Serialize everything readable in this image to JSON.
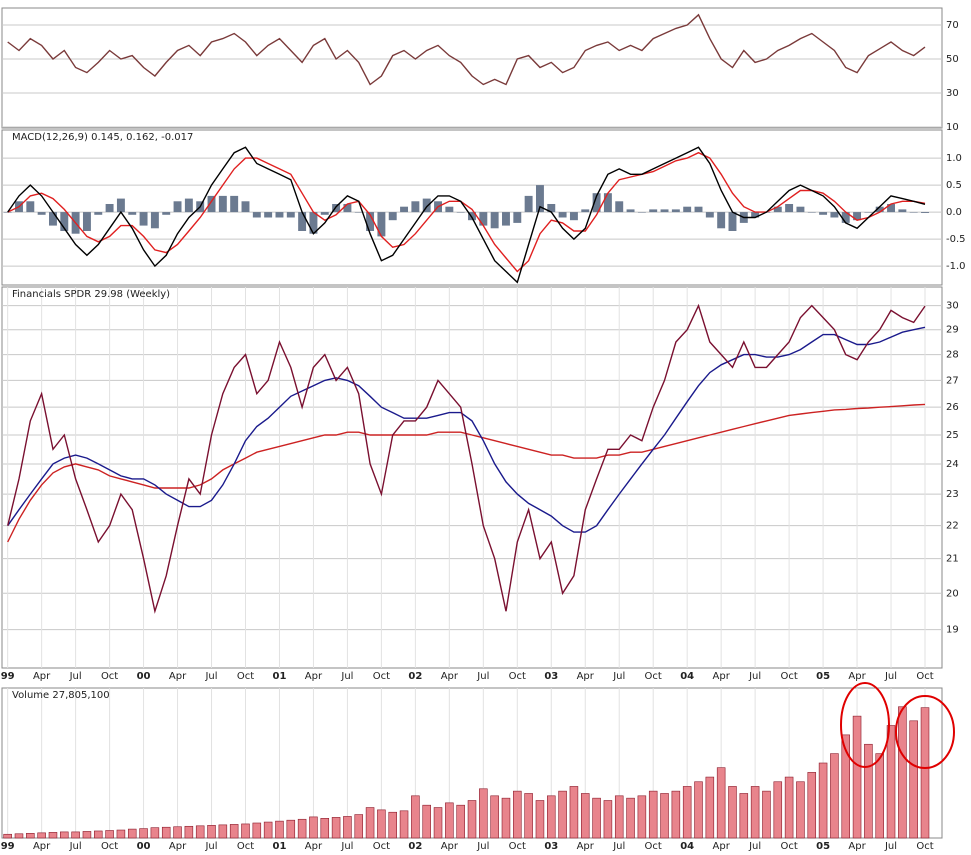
{
  "chart_data": [
    {
      "type": "line",
      "ylim": [
        9.4,
        80
      ],
      "yticks": [
        10,
        30,
        50,
        70
      ],
      "xlim": [
        -0.5,
        82.5
      ],
      "grid": true,
      "series": [
        {
          "color": "#7a3a3a",
          "values": [
            60,
            55,
            62,
            58,
            50,
            55,
            45,
            42,
            48,
            55,
            50,
            52,
            45,
            40,
            48,
            55,
            58,
            52,
            60,
            62,
            65,
            60,
            52,
            58,
            62,
            55,
            48,
            58,
            62,
            50,
            55,
            48,
            35,
            40,
            52,
            55,
            50,
            55,
            58,
            52,
            48,
            40,
            35,
            38,
            35,
            50,
            52,
            45,
            48,
            42,
            45,
            55,
            58,
            60,
            55,
            58,
            55,
            62,
            65,
            68,
            70,
            76,
            62,
            50,
            45,
            55,
            48,
            50,
            55,
            58,
            62,
            65,
            60,
            55,
            45,
            42,
            52,
            56,
            60,
            55,
            52,
            57
          ]
        }
      ]
    },
    {
      "type": "line",
      "title": "MACD(12,26,9) 0.145, 0.162, -0.017",
      "ylim": [
        -1.35,
        1.52
      ],
      "xlim": [
        -0.5,
        82.5
      ],
      "grid": true,
      "yticks": [
        {
          "value": -1,
          "label": "-1.0"
        },
        {
          "value": -0.5,
          "label": "-0.5"
        },
        {
          "value": 0,
          "label": "0.0"
        },
        {
          "value": 0.5,
          "label": "0.5"
        },
        {
          "value": 1,
          "label": "1.0"
        }
      ],
      "series": [
        {
          "type": "bar",
          "color": "#6b7a90",
          "values": [
            0.0,
            0.2,
            0.2,
            -0.05,
            -0.25,
            -0.35,
            -0.4,
            -0.35,
            -0.05,
            0.15,
            0.25,
            -0.05,
            -0.25,
            -0.3,
            -0.05,
            0.2,
            0.25,
            0.2,
            0.3,
            0.3,
            0.3,
            0.2,
            -0.1,
            -0.1,
            -0.1,
            -0.1,
            -0.35,
            -0.4,
            -0.05,
            0.15,
            0.15,
            0.0,
            -0.35,
            -0.45,
            -0.15,
            0.1,
            0.2,
            0.25,
            0.2,
            0.1,
            0.0,
            -0.15,
            -0.25,
            -0.3,
            -0.25,
            -0.2,
            0.3,
            0.5,
            0.15,
            -0.1,
            -0.15,
            0.05,
            0.35,
            0.35,
            0.2,
            0.05,
            0.0,
            0.05,
            0.05,
            0.05,
            0.1,
            0.1,
            -0.1,
            -0.3,
            -0.35,
            -0.2,
            -0.1,
            0.0,
            0.1,
            0.15,
            0.1,
            0.0,
            -0.05,
            -0.1,
            -0.2,
            -0.15,
            0.0,
            0.1,
            0.15,
            0.05,
            0.0,
            -0.017
          ]
        },
        {
          "color": "#e02020",
          "values": [
            0.0,
            0.1,
            0.3,
            0.35,
            0.25,
            0.05,
            -0.2,
            -0.45,
            -0.55,
            -0.45,
            -0.25,
            -0.25,
            -0.45,
            -0.7,
            -0.75,
            -0.6,
            -0.35,
            -0.1,
            0.2,
            0.5,
            0.8,
            1.0,
            1.0,
            0.9,
            0.8,
            0.7,
            0.35,
            0.0,
            -0.15,
            -0.05,
            0.15,
            0.2,
            -0.05,
            -0.45,
            -0.65,
            -0.6,
            -0.4,
            -0.15,
            0.1,
            0.2,
            0.2,
            0.05,
            -0.25,
            -0.6,
            -0.85,
            -1.1,
            -0.9,
            -0.4,
            -0.15,
            -0.2,
            -0.35,
            -0.35,
            -0.05,
            0.35,
            0.6,
            0.65,
            0.7,
            0.75,
            0.85,
            0.95,
            1.0,
            1.1,
            1.0,
            0.7,
            0.35,
            0.1,
            0.0,
            0.0,
            0.1,
            0.25,
            0.4,
            0.4,
            0.35,
            0.2,
            0.0,
            -0.15,
            -0.1,
            0.0,
            0.15,
            0.2,
            0.2,
            0.162
          ]
        },
        {
          "color": "#000000",
          "values": [
            0.0,
            0.3,
            0.5,
            0.3,
            0.0,
            -0.3,
            -0.6,
            -0.8,
            -0.6,
            -0.3,
            0.0,
            -0.3,
            -0.7,
            -1.0,
            -0.8,
            -0.4,
            -0.1,
            0.1,
            0.5,
            0.8,
            1.1,
            1.2,
            0.9,
            0.8,
            0.7,
            0.6,
            0.0,
            -0.4,
            -0.2,
            0.1,
            0.3,
            0.2,
            -0.4,
            -0.9,
            -0.8,
            -0.5,
            -0.2,
            0.1,
            0.3,
            0.3,
            0.2,
            -0.1,
            -0.5,
            -0.9,
            -1.1,
            -1.3,
            -0.6,
            0.1,
            0.0,
            -0.3,
            -0.5,
            -0.3,
            0.3,
            0.7,
            0.8,
            0.7,
            0.7,
            0.8,
            0.9,
            1.0,
            1.1,
            1.2,
            0.9,
            0.4,
            0.0,
            -0.1,
            -0.1,
            0.0,
            0.2,
            0.4,
            0.5,
            0.4,
            0.3,
            0.1,
            -0.2,
            -0.3,
            -0.1,
            0.1,
            0.3,
            0.25,
            0.2,
            0.145
          ]
        }
      ]
    },
    {
      "type": "line",
      "title": "Financials SPDR 29.98 (Weekly)",
      "log": true,
      "ylim": [
        18,
        30.8
      ],
      "yticks": [
        19,
        20,
        21,
        22,
        23,
        24,
        25,
        26,
        27,
        28,
        29,
        30
      ],
      "xlim": [
        -0.5,
        82.5
      ],
      "grid": true,
      "xticks": [
        {
          "value": 0,
          "label": "99"
        },
        {
          "value": 3,
          "label": "Apr"
        },
        {
          "value": 6,
          "label": "Jul"
        },
        {
          "value": 9,
          "label": "Oct"
        },
        {
          "value": 12,
          "label": "00"
        },
        {
          "value": 15,
          "label": "Apr"
        },
        {
          "value": 18,
          "label": "Jul"
        },
        {
          "value": 21,
          "label": "Oct"
        },
        {
          "value": 24,
          "label": "01"
        },
        {
          "value": 27,
          "label": "Apr"
        },
        {
          "value": 30,
          "label": "Jul"
        },
        {
          "value": 33,
          "label": "Oct"
        },
        {
          "value": 36,
          "label": "02"
        },
        {
          "value": 39,
          "label": "Apr"
        },
        {
          "value": 42,
          "label": "Jul"
        },
        {
          "value": 45,
          "label": "Oct"
        },
        {
          "value": 48,
          "label": "03"
        },
        {
          "value": 51,
          "label": "Apr"
        },
        {
          "value": 54,
          "label": "Jul"
        },
        {
          "value": 57,
          "label": "Oct"
        },
        {
          "value": 60,
          "label": "04"
        },
        {
          "value": 63,
          "label": "Apr"
        },
        {
          "value": 66,
          "label": "Jul"
        },
        {
          "value": 69,
          "label": "Oct"
        },
        {
          "value": 72,
          "label": "05"
        },
        {
          "value": 75,
          "label": "Apr"
        },
        {
          "value": 78,
          "label": "Jul"
        },
        {
          "value": 81,
          "label": "Oct"
        }
      ],
      "series": [
        {
          "color": "#cc2222",
          "values": [
            21.5,
            22.2,
            22.8,
            23.3,
            23.7,
            23.9,
            24.0,
            23.9,
            23.8,
            23.6,
            23.5,
            23.4,
            23.3,
            23.2,
            23.2,
            23.2,
            23.2,
            23.3,
            23.5,
            23.8,
            24.0,
            24.2,
            24.4,
            24.5,
            24.6,
            24.7,
            24.8,
            24.9,
            25.0,
            25.0,
            25.1,
            25.1,
            25.0,
            25.0,
            25.0,
            25.0,
            25.0,
            25.0,
            25.1,
            25.1,
            25.1,
            25.0,
            24.9,
            24.8,
            24.7,
            24.6,
            24.5,
            24.4,
            24.3,
            24.3,
            24.2,
            24.2,
            24.2,
            24.3,
            24.3,
            24.4,
            24.4,
            24.5,
            24.6,
            24.7,
            24.8,
            24.9,
            25.0,
            25.1,
            25.2,
            25.3,
            25.4,
            25.5,
            25.6,
            25.7,
            25.75,
            25.8,
            25.85,
            25.9,
            25.92,
            25.95,
            25.97,
            26.0,
            26.02,
            26.05,
            26.08,
            26.1
          ]
        },
        {
          "color": "#1a1a8c",
          "values": [
            22.0,
            22.5,
            23.0,
            23.5,
            24.0,
            24.2,
            24.3,
            24.2,
            24.0,
            23.8,
            23.6,
            23.5,
            23.5,
            23.3,
            23.0,
            22.8,
            22.6,
            22.6,
            22.8,
            23.3,
            24.0,
            24.8,
            25.3,
            25.6,
            26.0,
            26.4,
            26.6,
            26.8,
            27.0,
            27.1,
            27.0,
            26.8,
            26.4,
            26.0,
            25.8,
            25.6,
            25.6,
            25.6,
            25.7,
            25.8,
            25.8,
            25.5,
            24.8,
            24.0,
            23.4,
            23.0,
            22.7,
            22.5,
            22.3,
            22.0,
            21.8,
            21.8,
            22.0,
            22.5,
            23.0,
            23.5,
            24.0,
            24.5,
            25.0,
            25.6,
            26.2,
            26.8,
            27.3,
            27.6,
            27.8,
            28.0,
            28.0,
            27.9,
            27.9,
            28.0,
            28.2,
            28.5,
            28.8,
            28.8,
            28.6,
            28.4,
            28.4,
            28.5,
            28.7,
            28.9,
            29.0,
            29.1
          ]
        },
        {
          "color": "#7a1030",
          "values": [
            22.0,
            23.5,
            25.5,
            26.5,
            24.5,
            25.0,
            23.5,
            22.5,
            21.5,
            22.0,
            23.0,
            22.5,
            21.0,
            19.5,
            20.5,
            22.0,
            23.5,
            23.0,
            25.0,
            26.5,
            27.5,
            28.0,
            26.5,
            27.0,
            28.5,
            27.5,
            26.0,
            27.5,
            28.0,
            27.0,
            27.5,
            26.5,
            24.0,
            23.0,
            25.0,
            25.5,
            25.5,
            26.0,
            27.0,
            26.5,
            26.0,
            24.0,
            22.0,
            21.0,
            19.5,
            21.5,
            22.5,
            21.0,
            21.5,
            20.0,
            20.5,
            22.5,
            23.5,
            24.5,
            24.5,
            25.0,
            24.8,
            26.0,
            27.0,
            28.5,
            29.0,
            30.0,
            28.5,
            28.0,
            27.5,
            28.5,
            27.5,
            27.5,
            28.0,
            28.5,
            29.5,
            30.0,
            29.5,
            29.0,
            28.0,
            27.8,
            28.5,
            29.0,
            29.8,
            29.5,
            29.3,
            29.98
          ]
        }
      ]
    },
    {
      "type": "bar",
      "title": "Volume 27,805,100",
      "ylim": [
        0,
        32000000
      ],
      "xlim": [
        -0.5,
        82.5
      ],
      "color": "#e8848c",
      "stroke": "#8a1a2a",
      "xticks": [
        {
          "value": 0,
          "label": "99"
        },
        {
          "value": 3,
          "label": "Apr"
        },
        {
          "value": 6,
          "label": "Jul"
        },
        {
          "value": 9,
          "label": "Oct"
        },
        {
          "value": 12,
          "label": "00"
        },
        {
          "value": 15,
          "label": "Apr"
        },
        {
          "value": 18,
          "label": "Jul"
        },
        {
          "value": 21,
          "label": "Oct"
        },
        {
          "value": 24,
          "label": "01"
        },
        {
          "value": 27,
          "label": "Apr"
        },
        {
          "value": 30,
          "label": "Jul"
        },
        {
          "value": 33,
          "label": "Oct"
        },
        {
          "value": 36,
          "label": "02"
        },
        {
          "value": 39,
          "label": "Apr"
        },
        {
          "value": 42,
          "label": "Jul"
        },
        {
          "value": 45,
          "label": "Oct"
        },
        {
          "value": 48,
          "label": "03"
        },
        {
          "value": 51,
          "label": "Apr"
        },
        {
          "value": 54,
          "label": "Jul"
        },
        {
          "value": 57,
          "label": "Oct"
        },
        {
          "value": 60,
          "label": "04"
        },
        {
          "value": 63,
          "label": "Apr"
        },
        {
          "value": 66,
          "label": "Jul"
        },
        {
          "value": 69,
          "label": "Oct"
        },
        {
          "value": 72,
          "label": "05"
        },
        {
          "value": 75,
          "label": "Apr"
        },
        {
          "value": 78,
          "label": "Jul"
        },
        {
          "value": 81,
          "label": "Oct"
        }
      ],
      "values": [
        800000,
        900000,
        1000000,
        1100000,
        1200000,
        1300000,
        1300000,
        1400000,
        1500000,
        1600000,
        1700000,
        1900000,
        2000000,
        2200000,
        2300000,
        2400000,
        2500000,
        2600000,
        2700000,
        2800000,
        2900000,
        3000000,
        3200000,
        3400000,
        3600000,
        3800000,
        4000000,
        4500000,
        4200000,
        4400000,
        4600000,
        5000000,
        6500000,
        6000000,
        5500000,
        5800000,
        9000000,
        7000000,
        6500000,
        7500000,
        7000000,
        8000000,
        10500000,
        9000000,
        8500000,
        10000000,
        9500000,
        8000000,
        9000000,
        10000000,
        11000000,
        9500000,
        8500000,
        8000000,
        9000000,
        8500000,
        9000000,
        10000000,
        9500000,
        10000000,
        11000000,
        12000000,
        13000000,
        15000000,
        11000000,
        9500000,
        11000000,
        10000000,
        12000000,
        13000000,
        12000000,
        14000000,
        16000000,
        18000000,
        22000000,
        26000000,
        20000000,
        18000000,
        24000000,
        28000000,
        25000000,
        27805100
      ]
    }
  ]
}
